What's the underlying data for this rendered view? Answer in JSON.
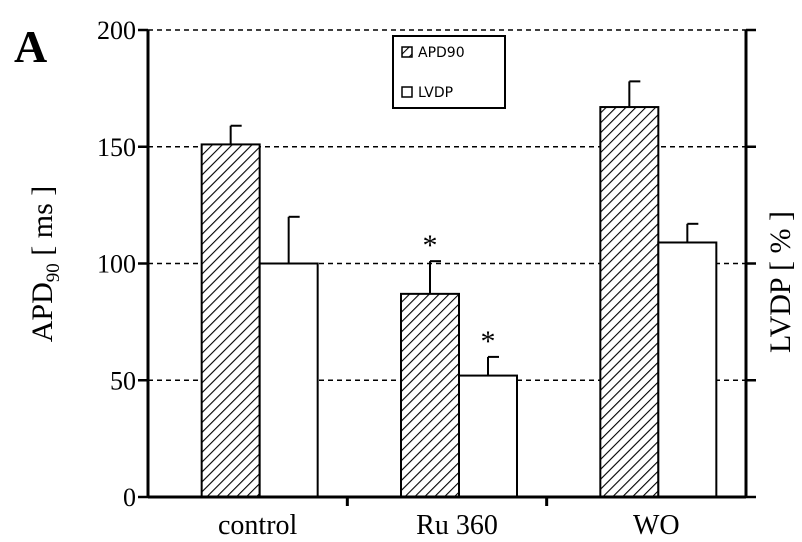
{
  "panel_label": "A",
  "chart_data": {
    "type": "bar",
    "categories": [
      "control",
      "Ru 360",
      "WO"
    ],
    "series": [
      {
        "name": "APD90",
        "values": [
          151,
          87,
          167
        ],
        "errors": [
          8,
          14,
          11
        ],
        "pattern": "hatched"
      },
      {
        "name": "LVDP",
        "values": [
          100,
          52,
          109
        ],
        "errors": [
          20,
          8,
          8
        ],
        "pattern": "open"
      }
    ],
    "significance": [
      {
        "category": "Ru 360",
        "series": "APD90",
        "label": "*"
      },
      {
        "category": "Ru 360",
        "series": "LVDP",
        "label": "*"
      }
    ],
    "ylabel_left": {
      "main": "APD",
      "sub": "90",
      "rest": " [ ms ]"
    },
    "ylabel_right": "LVDP [ % ]",
    "yticks": [
      0,
      50,
      100,
      150,
      200
    ],
    "ylim": [
      0,
      200
    ],
    "grid": "horizontal dashed",
    "legend_position": "top-center"
  }
}
